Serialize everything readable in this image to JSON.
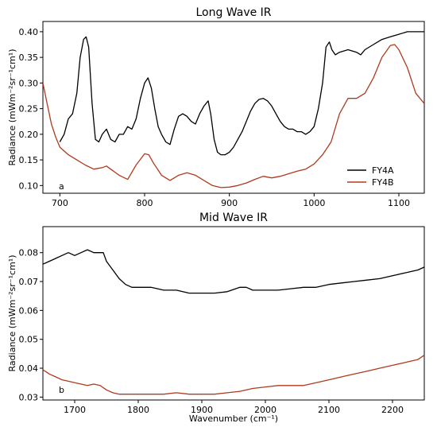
{
  "series_colors": {
    "FY4A": "#000000",
    "FY4B": "#b03a1e"
  },
  "chart_data": [
    {
      "type": "line",
      "title": "Long Wave IR",
      "panel_label": "a",
      "xlabel": "",
      "ylabel": "Radiance (mWm⁻²sr⁻¹cm¹)",
      "xlim": [
        680,
        1130
      ],
      "ylim": [
        0.085,
        0.42
      ],
      "xticks": [
        700,
        800,
        900,
        1000,
        1100
      ],
      "yticks": [
        0.1,
        0.15,
        0.2,
        0.25,
        0.3,
        0.35,
        0.4
      ],
      "ytick_labels": [
        "0.10",
        "0.15",
        "0.20",
        "0.25",
        "0.30",
        "0.35",
        "0.40"
      ],
      "legend": {
        "position": "lower-right",
        "entries": [
          "FY4A",
          "FY4B"
        ]
      },
      "grid": false,
      "series": [
        {
          "name": "FY4A",
          "x": [
            700,
            705,
            710,
            715,
            720,
            724,
            728,
            731,
            734,
            738,
            742,
            746,
            750,
            755,
            760,
            765,
            770,
            775,
            780,
            785,
            790,
            795,
            800,
            804,
            808,
            812,
            816,
            820,
            825,
            830,
            835,
            840,
            845,
            850,
            855,
            860,
            865,
            870,
            875,
            878,
            882,
            886,
            890,
            895,
            900,
            905,
            910,
            915,
            920,
            925,
            930,
            935,
            940,
            945,
            950,
            955,
            960,
            965,
            970,
            975,
            980,
            985,
            990,
            995,
            1000,
            1005,
            1010,
            1014,
            1018,
            1021,
            1025,
            1030,
            1040,
            1050,
            1055,
            1060,
            1070,
            1080,
            1090,
            1100,
            1110,
            1120,
            1130
          ],
          "y": [
            0.185,
            0.2,
            0.23,
            0.24,
            0.28,
            0.35,
            0.385,
            0.39,
            0.37,
            0.26,
            0.19,
            0.185,
            0.2,
            0.21,
            0.19,
            0.185,
            0.2,
            0.2,
            0.215,
            0.21,
            0.23,
            0.27,
            0.3,
            0.31,
            0.29,
            0.25,
            0.215,
            0.2,
            0.185,
            0.18,
            0.21,
            0.235,
            0.24,
            0.235,
            0.225,
            0.22,
            0.24,
            0.255,
            0.265,
            0.24,
            0.19,
            0.165,
            0.16,
            0.16,
            0.165,
            0.175,
            0.19,
            0.205,
            0.225,
            0.245,
            0.26,
            0.268,
            0.27,
            0.265,
            0.255,
            0.24,
            0.225,
            0.215,
            0.21,
            0.21,
            0.205,
            0.205,
            0.2,
            0.205,
            0.215,
            0.25,
            0.3,
            0.37,
            0.38,
            0.365,
            0.355,
            0.36,
            0.365,
            0.36,
            0.355,
            0.365,
            0.375,
            0.385,
            0.39,
            0.395,
            0.4,
            0.4,
            0.4
          ]
        },
        {
          "name": "FY4B",
          "x": [
            680,
            685,
            690,
            695,
            700,
            710,
            720,
            730,
            740,
            750,
            755,
            760,
            770,
            780,
            790,
            800,
            805,
            810,
            820,
            830,
            840,
            850,
            860,
            870,
            880,
            890,
            900,
            910,
            920,
            930,
            940,
            950,
            960,
            970,
            980,
            990,
            1000,
            1010,
            1020,
            1030,
            1040,
            1050,
            1060,
            1070,
            1080,
            1090,
            1095,
            1100,
            1110,
            1120,
            1130
          ],
          "y": [
            0.3,
            0.26,
            0.22,
            0.195,
            0.175,
            0.16,
            0.15,
            0.14,
            0.132,
            0.135,
            0.138,
            0.132,
            0.12,
            0.112,
            0.14,
            0.162,
            0.16,
            0.145,
            0.12,
            0.11,
            0.12,
            0.125,
            0.12,
            0.11,
            0.1,
            0.096,
            0.097,
            0.1,
            0.105,
            0.112,
            0.118,
            0.115,
            0.118,
            0.123,
            0.128,
            0.132,
            0.142,
            0.16,
            0.185,
            0.24,
            0.27,
            0.27,
            0.28,
            0.31,
            0.35,
            0.373,
            0.375,
            0.365,
            0.33,
            0.28,
            0.26
          ]
        }
      ]
    },
    {
      "type": "line",
      "title": "Mid Wave IR",
      "panel_label": "b",
      "xlabel": "Wavenumber (cm⁻¹)",
      "ylabel": "Radiance (mWm⁻²sr⁻¹cm¹)",
      "xlim": [
        1650,
        2250
      ],
      "ylim": [
        0.029,
        0.089
      ],
      "xticks": [
        1700,
        1800,
        1900,
        2000,
        2100,
        2200
      ],
      "yticks": [
        0.03,
        0.04,
        0.05,
        0.06,
        0.07,
        0.08
      ],
      "ytick_labels": [
        "0.03",
        "0.04",
        "0.05",
        "0.06",
        "0.07",
        "0.08"
      ],
      "grid": false,
      "series": [
        {
          "name": "FY4A",
          "x": [
            1650,
            1660,
            1670,
            1680,
            1690,
            1700,
            1710,
            1720,
            1730,
            1740,
            1745,
            1750,
            1760,
            1770,
            1780,
            1790,
            1800,
            1820,
            1840,
            1860,
            1880,
            1900,
            1920,
            1940,
            1960,
            1970,
            1980,
            2000,
            2020,
            2040,
            2060,
            2080,
            2100,
            2120,
            2140,
            2160,
            2180,
            2200,
            2220,
            2240,
            2250
          ],
          "y": [
            0.076,
            0.077,
            0.078,
            0.079,
            0.08,
            0.079,
            0.08,
            0.081,
            0.08,
            0.08,
            0.08,
            0.077,
            0.074,
            0.071,
            0.069,
            0.068,
            0.068,
            0.068,
            0.067,
            0.067,
            0.066,
            0.066,
            0.066,
            0.0665,
            0.068,
            0.068,
            0.067,
            0.067,
            0.067,
            0.0675,
            0.068,
            0.068,
            0.069,
            0.0695,
            0.07,
            0.0705,
            0.071,
            0.072,
            0.073,
            0.074,
            0.075
          ]
        },
        {
          "name": "FY4B",
          "x": [
            1650,
            1660,
            1670,
            1680,
            1690,
            1700,
            1710,
            1720,
            1730,
            1740,
            1750,
            1760,
            1770,
            1780,
            1800,
            1820,
            1840,
            1860,
            1880,
            1900,
            1920,
            1940,
            1960,
            1980,
            2000,
            2020,
            2040,
            2060,
            2080,
            2100,
            2120,
            2140,
            2160,
            2180,
            2200,
            2220,
            2240,
            2250
          ],
          "y": [
            0.0395,
            0.038,
            0.037,
            0.036,
            0.0355,
            0.035,
            0.0345,
            0.034,
            0.0345,
            0.034,
            0.0325,
            0.0315,
            0.031,
            0.031,
            0.031,
            0.031,
            0.031,
            0.0315,
            0.031,
            0.031,
            0.031,
            0.0315,
            0.032,
            0.033,
            0.0335,
            0.034,
            0.034,
            0.034,
            0.035,
            0.036,
            0.037,
            0.038,
            0.039,
            0.04,
            0.041,
            0.042,
            0.043,
            0.0445
          ]
        }
      ]
    }
  ]
}
